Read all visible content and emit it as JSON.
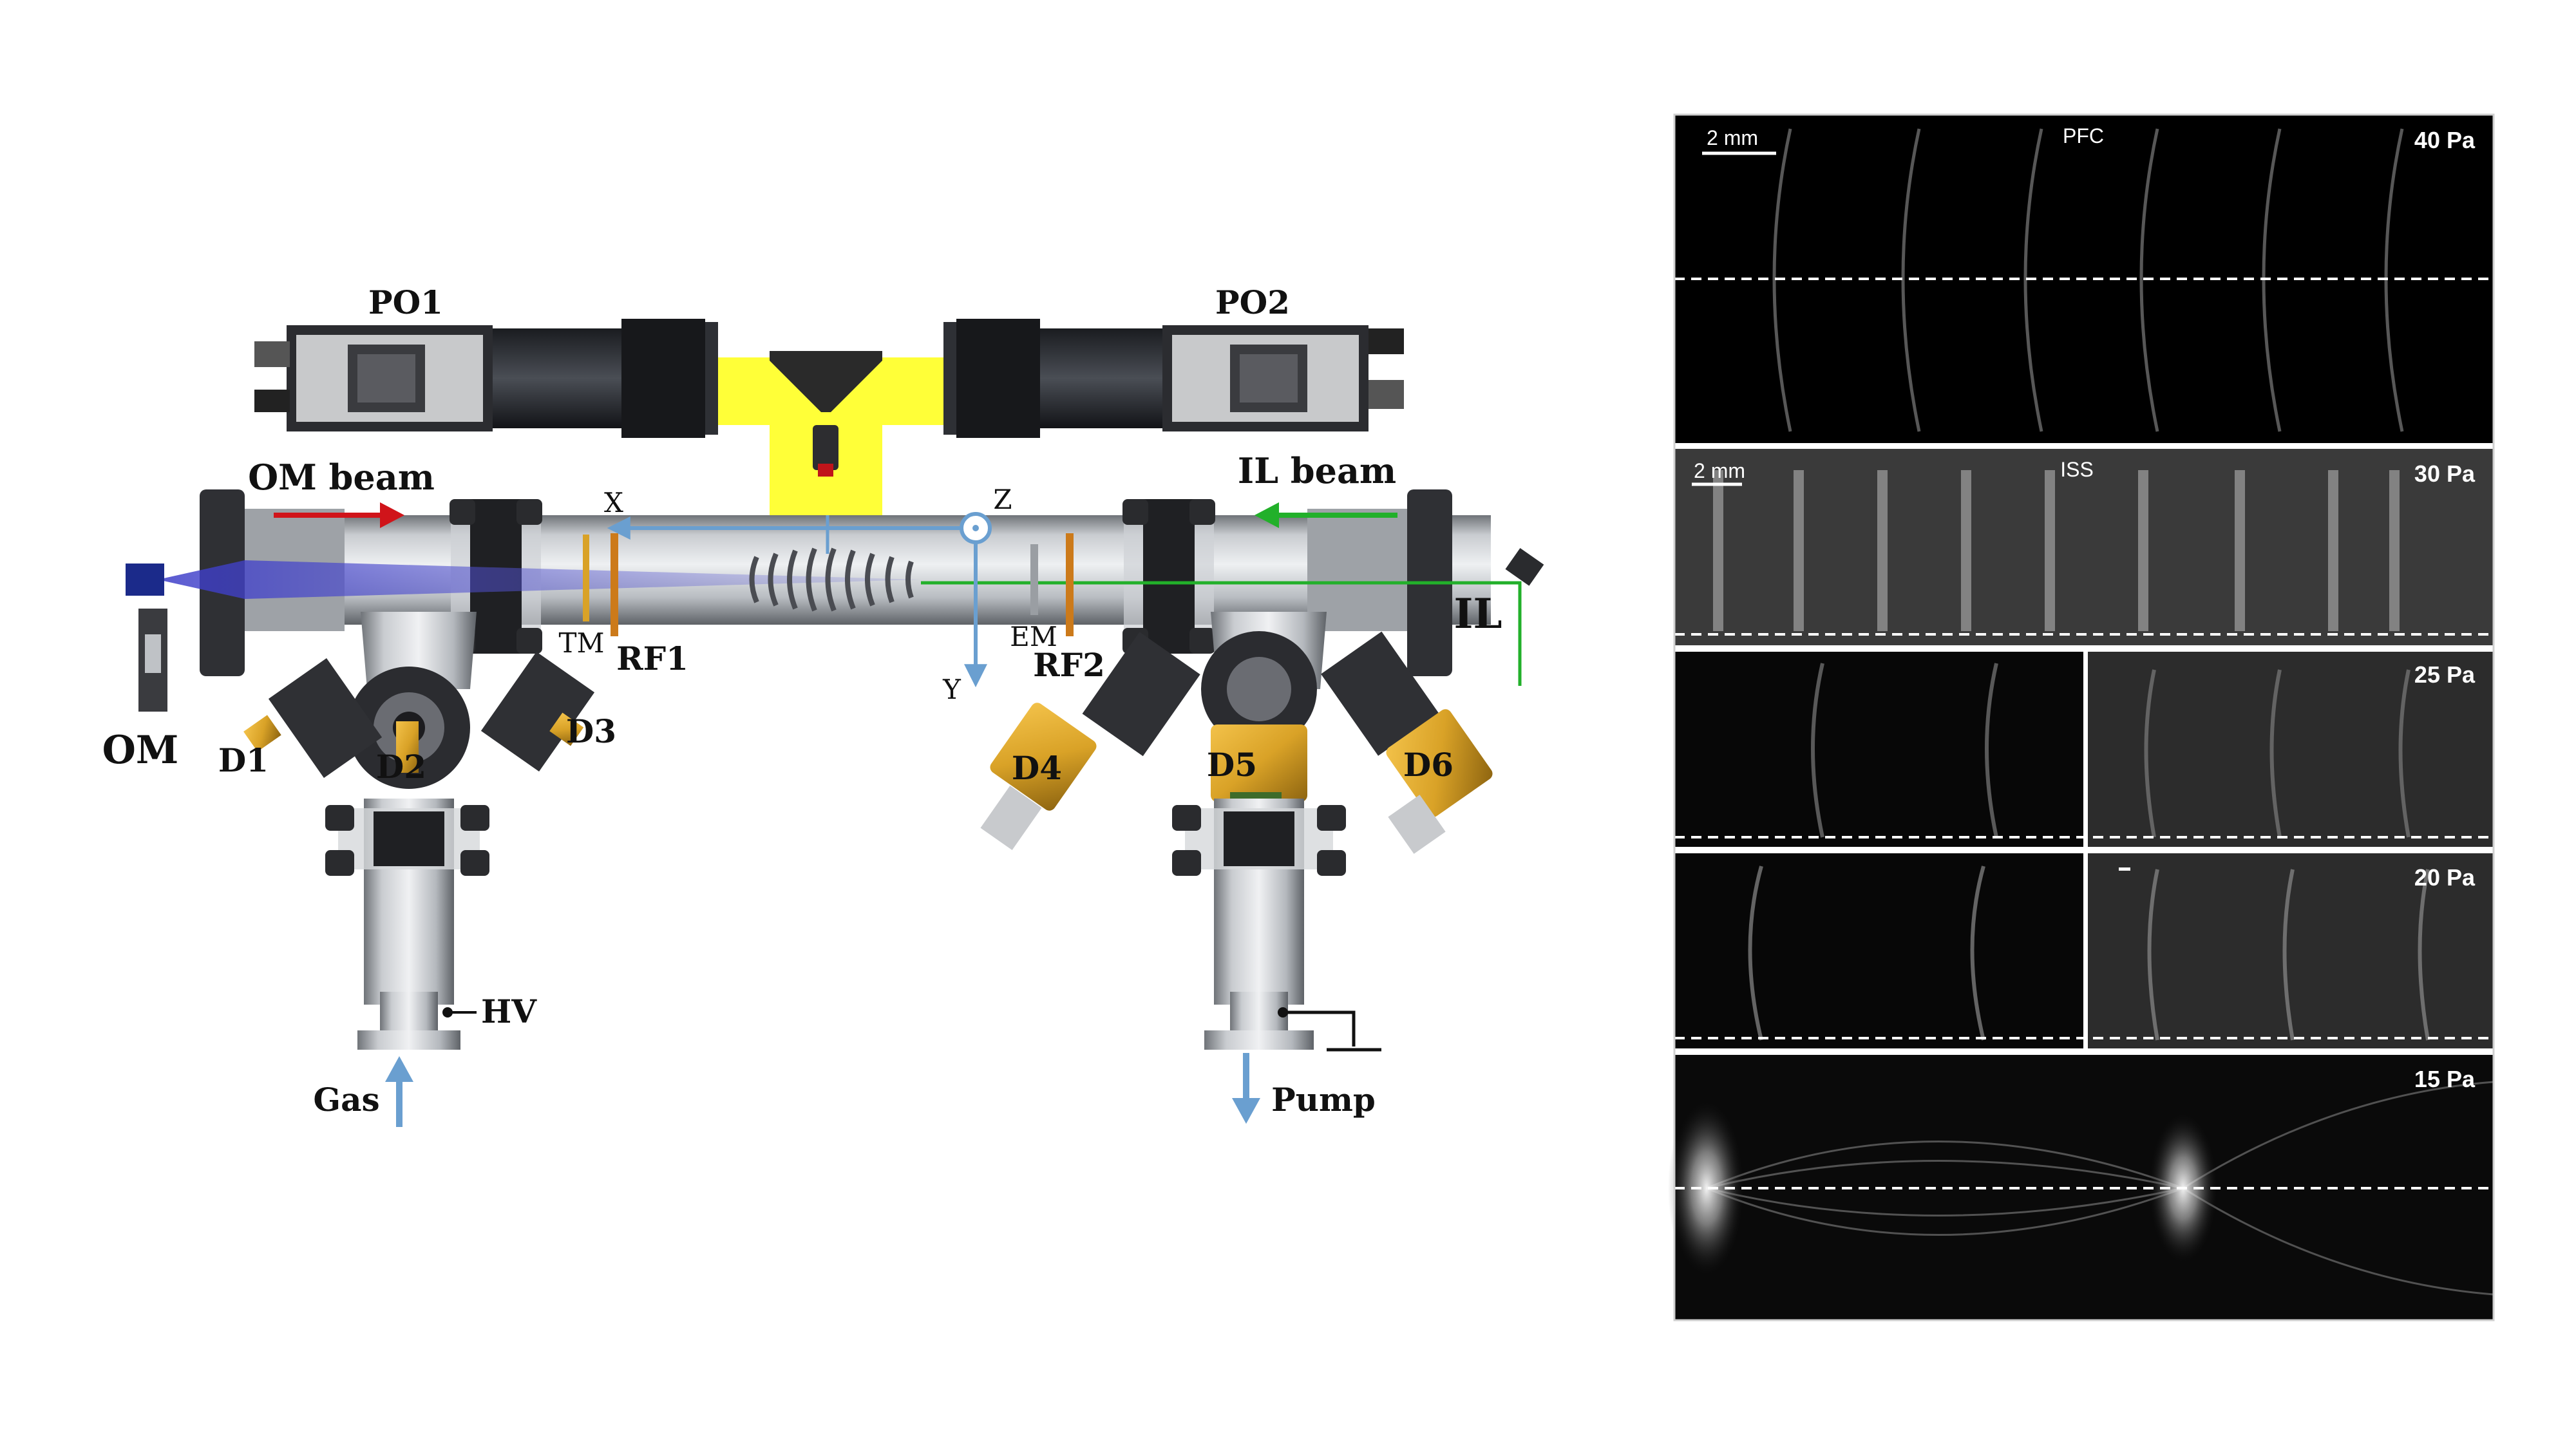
{
  "setup": {
    "po1": "PO1",
    "po2": "PO2",
    "om_beam": "OM beam",
    "il_beam": "IL beam",
    "om": "OM",
    "il": "IL",
    "d1": "D1",
    "d2": "D2",
    "d3": "D3",
    "d4": "D4",
    "d5": "D5",
    "d6": "D6",
    "tm": "TM",
    "rf1": "RF1",
    "em": "EM",
    "rf2": "RF2",
    "axis_x": "X",
    "axis_y": "Y",
    "axis_z": "Z",
    "hv": "HV",
    "gas": "Gas",
    "pump": "Pump"
  },
  "panels": [
    {
      "pressure": "40 Pa",
      "scale": "2 mm",
      "tag": "PFC"
    },
    {
      "pressure": "30 Pa",
      "scale": "2 mm",
      "tag": "ISS"
    },
    {
      "pressure": "25 Pa"
    },
    {
      "pressure": "20 Pa"
    },
    {
      "pressure": "15 Pa"
    }
  ],
  "colors": {
    "om_beam_arrow": "#d0141a",
    "il_beam_arrow": "#22b02a",
    "axes": "#6a9fd0",
    "camera_field": "#ffff22",
    "brass": "#d9a227",
    "rf_ring": "#cc7a1a"
  }
}
